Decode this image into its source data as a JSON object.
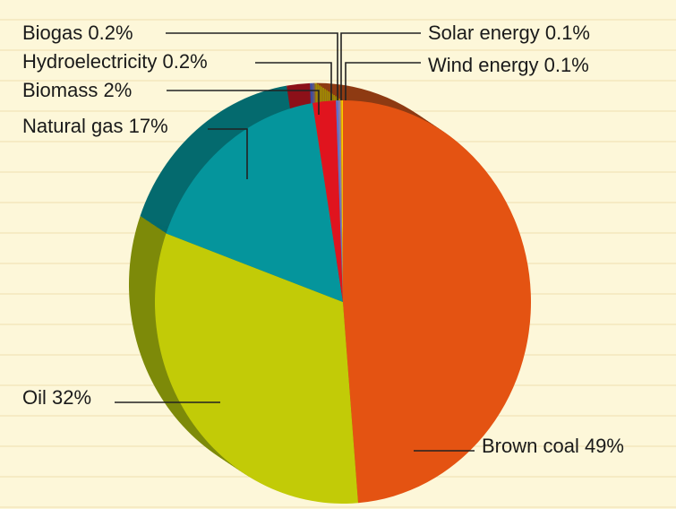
{
  "chart_data": {
    "type": "pie",
    "style": "3d-tilted",
    "start_angle_deg": 0,
    "direction": "clockwise",
    "slices": [
      {
        "label": "Brown coal",
        "value": 49,
        "text": "Brown coal 49%",
        "color": "#e45312",
        "side_color": "#8e3a12"
      },
      {
        "label": "Oil",
        "value": 32,
        "text": "Oil 32%",
        "color": "#c2cb07",
        "side_color": "#7d8a09"
      },
      {
        "label": "Natural gas",
        "value": 17,
        "text": "Natural gas 17%",
        "color": "#05959c",
        "side_color": "#046a6e"
      },
      {
        "label": "Biomass",
        "value": 2,
        "text": "Biomass 2%",
        "color": "#e0141e",
        "side_color": "#8c1018"
      },
      {
        "label": "Hydroelectricity",
        "value": 0.2,
        "text": "Hydroelectricity 0.2%",
        "color": "#5d6fd0",
        "side_color": "#3d4ca0"
      },
      {
        "label": "Biogas",
        "value": 0.2,
        "text": "Biogas 0.2%",
        "color": "#8a7fa8",
        "side_color": "#5e5680"
      },
      {
        "label": "Solar energy",
        "value": 0.1,
        "text": "Solar energy 0.1%",
        "color": "#f0a800",
        "side_color": "#a07000"
      },
      {
        "label": "Wind energy",
        "value": 0.1,
        "text": "Wind energy 0.1%",
        "color": "#f5d000",
        "side_color": "#a08a00"
      }
    ]
  },
  "colors": {
    "background": "#fdf7d9",
    "ruled_line": "#f0dfb0",
    "leader_line": "#222222"
  }
}
